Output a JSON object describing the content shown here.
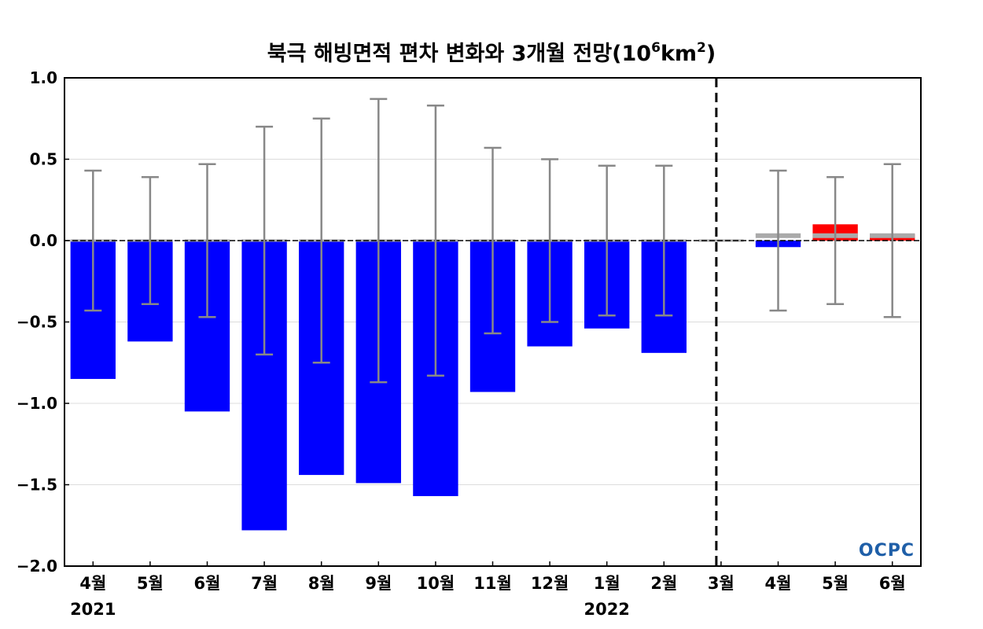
{
  "chart_data": {
    "type": "bar",
    "title": "북극 해빙면적 편차 변화와 3개월 전망(10",
    "title_power": "6",
    "title_unit": "km",
    "title_unit_power": "2",
    "title_end": ")",
    "categories": [
      "4월",
      "5월",
      "6월",
      "7월",
      "8월",
      "9월",
      "10월",
      "11월",
      "12월",
      "1월",
      "2월",
      "3월",
      "4월",
      "5월",
      "6월"
    ],
    "year_labels": [
      {
        "category_index": 0,
        "text": "2021"
      },
      {
        "category_index": 9,
        "text": "2022"
      }
    ],
    "ylim": [
      -2.0,
      1.0
    ],
    "yticks": [
      1.0,
      0.5,
      0.0,
      -0.5,
      -1.0,
      -1.5,
      -2.0
    ],
    "ytick_labels": [
      "1.0",
      "0.5",
      "0.0",
      "−0.5",
      "−1.0",
      "−1.5",
      "−2.0"
    ],
    "grid": true,
    "series": [
      {
        "values": [
          -0.85,
          -0.62,
          -1.05,
          -1.78,
          -1.44,
          -1.49,
          -1.57,
          -0.93,
          -0.65,
          -0.54,
          -0.69,
          null,
          -0.04,
          0.1,
          0.04
        ]
      }
    ],
    "bar_colors": [
      "#0000ff",
      "#0000ff",
      "#0000ff",
      "#0000ff",
      "#0000ff",
      "#0000ff",
      "#0000ff",
      "#0000ff",
      "#0000ff",
      "#0000ff",
      "#0000ff",
      null,
      "#0000ff",
      "#ff0000",
      "#ff0000"
    ],
    "error_bar_halfwidths": [
      0.43,
      0.39,
      0.47,
      0.7,
      0.75,
      0.87,
      0.83,
      0.57,
      0.5,
      0.46,
      0.46,
      null,
      0.43,
      0.39,
      0.47
    ],
    "climatology_baseline": {
      "description_color": "#aaaaaa",
      "values": [
        0.0,
        0.0,
        0.0,
        0.0,
        0.0,
        0.0,
        0.0,
        0.0,
        0.0,
        0.0,
        0.0,
        0.0,
        0.03,
        0.03,
        0.03
      ]
    },
    "divider_after_category": "3월",
    "colors": {
      "negative": "#0000ff",
      "positive": "#ff0000",
      "error_bar": "#888888",
      "baseline": "#aaaaaa",
      "zero_line": "#000000",
      "divider": "#000000"
    },
    "logo": {
      "text": "OCPC",
      "color": "#1f5fa8"
    }
  }
}
